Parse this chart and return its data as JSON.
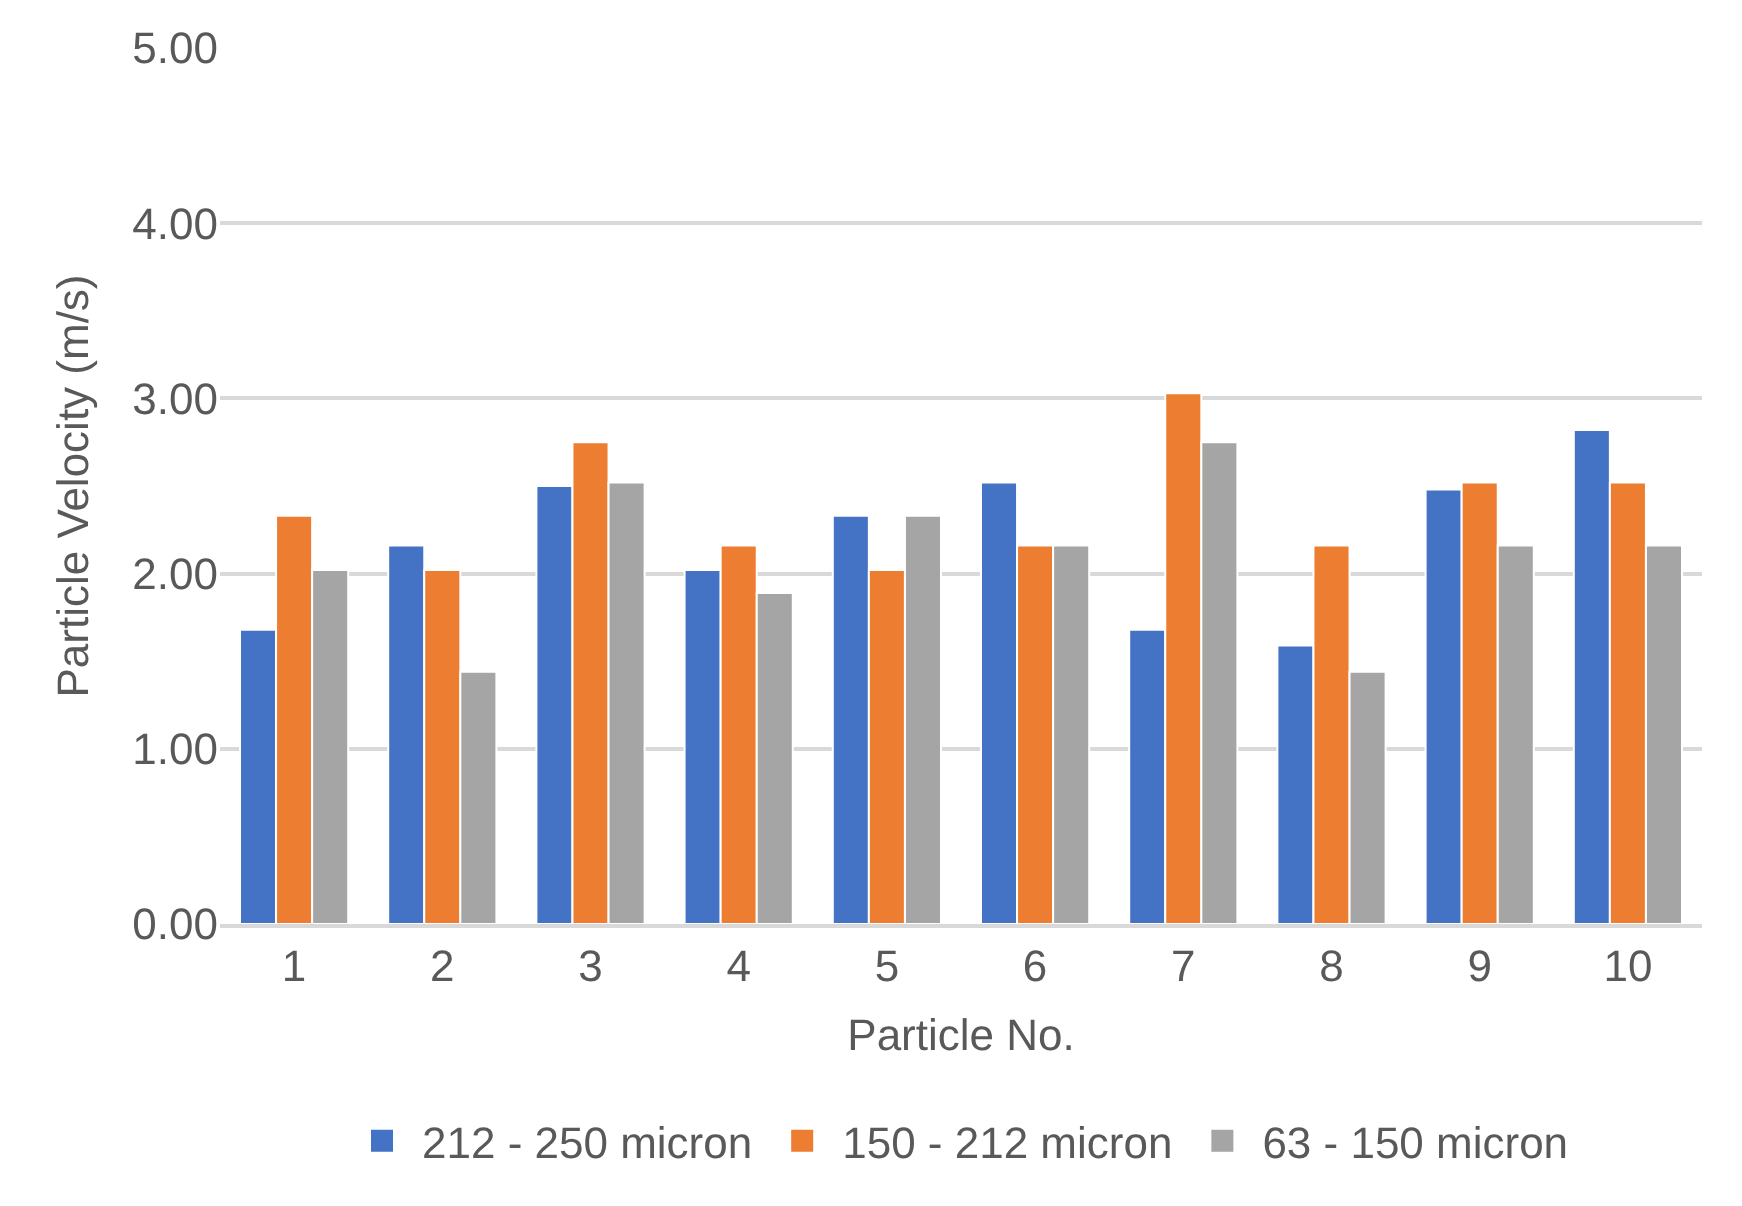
{
  "chart_data": {
    "type": "bar",
    "xlabel": "Particle No.",
    "ylabel": "Particle Velocity (m/s)",
    "categories": [
      "1",
      "2",
      "3",
      "4",
      "5",
      "6",
      "7",
      "8",
      "9",
      "10"
    ],
    "series": [
      {
        "name": "212 - 250 micron",
        "color": "#4472c4",
        "values": [
          1.68,
          2.16,
          2.5,
          2.02,
          2.33,
          2.52,
          1.68,
          1.59,
          2.48,
          2.82
        ]
      },
      {
        "name": "150 - 212 micron",
        "color": "#ed7d31",
        "values": [
          2.33,
          2.02,
          2.75,
          2.16,
          2.02,
          2.16,
          3.03,
          2.16,
          2.52,
          2.52
        ]
      },
      {
        "name": "63 - 150 micron",
        "color": "#a5a5a5",
        "values": [
          2.02,
          1.44,
          2.52,
          1.89,
          2.33,
          2.16,
          2.75,
          1.44,
          2.16,
          2.16
        ]
      }
    ],
    "ylim": [
      0,
      5
    ],
    "yticks": [
      {
        "value": 0,
        "label": "0.00"
      },
      {
        "value": 1,
        "label": "1.00"
      },
      {
        "value": 2,
        "label": "2.00"
      },
      {
        "value": 3,
        "label": "3.00"
      },
      {
        "value": 4,
        "label": "4.00"
      },
      {
        "value": 5,
        "label": "5.00"
      }
    ],
    "grid": "y",
    "legend": "bottom"
  }
}
